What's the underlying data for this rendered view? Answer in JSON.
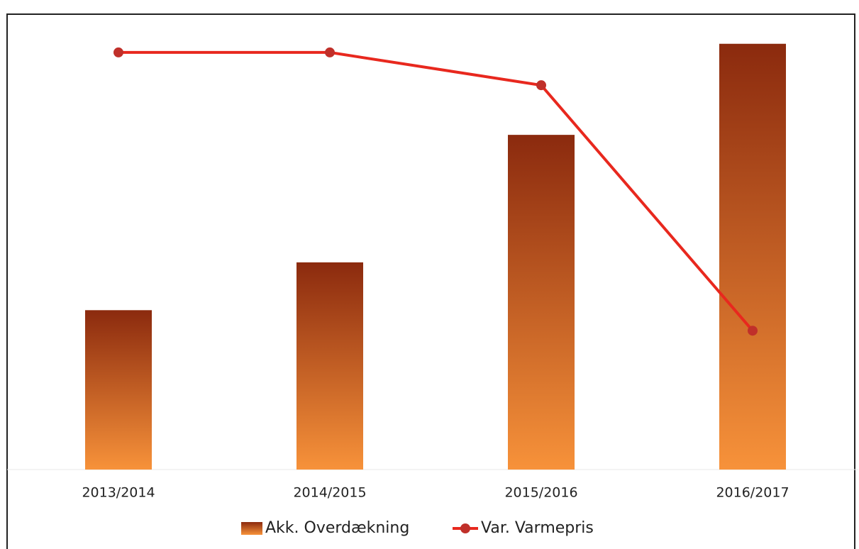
{
  "chart_data": {
    "type": "bar_line",
    "categories": [
      "2013/2014",
      "2014/2015",
      "2015/2016",
      "2016/2017"
    ],
    "series": [
      {
        "name": "Akk. Overdækning",
        "type": "bar",
        "color": "#f7923a",
        "color_top": "#8b2a0e",
        "values": [
          35,
          45.5,
          73.5,
          93.5
        ]
      },
      {
        "name": "Var. Varmepris",
        "type": "line",
        "axis": "y2",
        "color": "#e8281e",
        "marker_color": "#c0302a",
        "values": [
          91.6,
          91.6,
          84.4,
          30.5
        ]
      }
    ],
    "ylim": [
      0,
      100
    ],
    "y2lim": [
      0,
      100
    ],
    "legend": "bottom"
  }
}
